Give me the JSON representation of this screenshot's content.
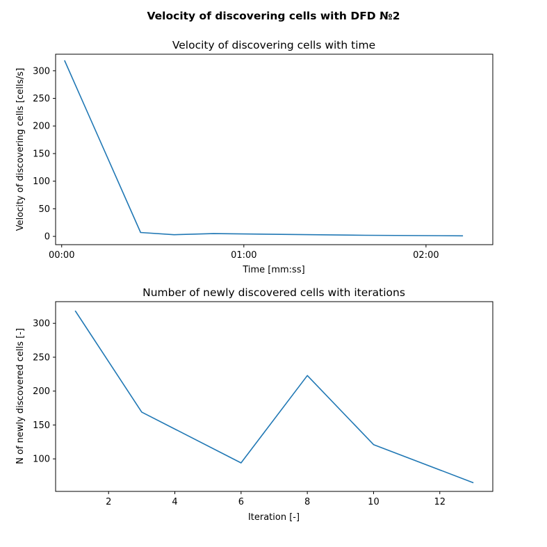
{
  "figure": {
    "suptitle": "Velocity of discovering cells with DFD №2"
  },
  "chart_data": [
    {
      "type": "line",
      "title": "Velocity of discovering cells with time",
      "xlabel": "Time [mm:ss]",
      "ylabel": "Velocity of discovering cells [cells/s]",
      "x_unit": "mm:ss",
      "xlim": [
        "-00:02",
        "02:22"
      ],
      "ylim": [
        -15,
        330
      ],
      "x_ticks": [
        "00:00",
        "01:00",
        "02:00"
      ],
      "y_ticks": [
        0,
        50,
        100,
        150,
        200,
        250,
        300
      ],
      "grid": false,
      "series": [
        {
          "color": "#1f77b4",
          "x": [
            "00:01",
            "00:26",
            "00:37",
            "00:50",
            "01:40",
            "02:12"
          ],
          "y": [
            318,
            7,
            3,
            5,
            2,
            1
          ]
        }
      ]
    },
    {
      "type": "line",
      "title": "Number of newly discovered cells with iterations",
      "xlabel": "Iteration [-]",
      "ylabel": "N of newly discovered cells [-]",
      "xlim": [
        0.4,
        13.6
      ],
      "ylim": [
        52,
        332
      ],
      "x_ticks": [
        2,
        4,
        6,
        8,
        10,
        12
      ],
      "y_ticks": [
        100,
        150,
        200,
        250,
        300
      ],
      "grid": false,
      "series": [
        {
          "color": "#1f77b4",
          "x": [
            1,
            3,
            6,
            8,
            10,
            13
          ],
          "y": [
            318,
            169,
            94,
            223,
            121,
            65
          ]
        }
      ]
    }
  ]
}
